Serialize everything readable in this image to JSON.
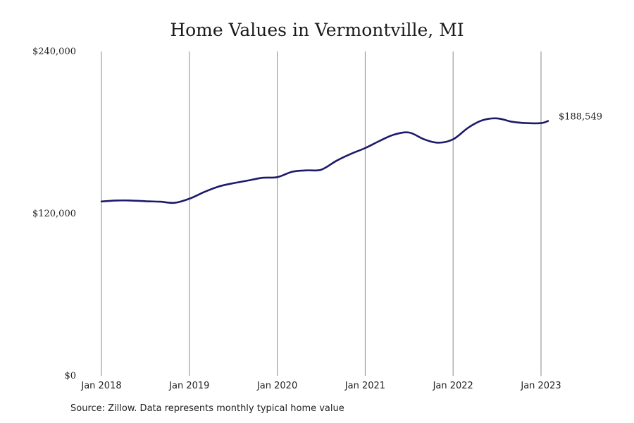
{
  "chart_data": {
    "type": "line",
    "title": "Home Values in Vermontville, MI",
    "xlabel": "",
    "ylabel": "",
    "ylim": [
      0,
      240000
    ],
    "y_ticks": [
      {
        "value": 0,
        "label": "$0"
      },
      {
        "value": 120000,
        "label": "$120,000"
      },
      {
        "value": 240000,
        "label": "$240,000"
      }
    ],
    "x_ticks": [
      {
        "value": 2018,
        "label": "Jan 2018"
      },
      {
        "value": 2019,
        "label": "Jan 2019"
      },
      {
        "value": 2020,
        "label": "Jan 2020"
      },
      {
        "value": 2021,
        "label": "Jan 2021"
      },
      {
        "value": 2022,
        "label": "Jan 2022"
      },
      {
        "value": 2023,
        "label": "Jan 2023"
      }
    ],
    "xlim": [
      2018,
      2023.17
    ],
    "grid": "vertical",
    "line_color": "#1c1a6b",
    "series": [
      {
        "points": [
          [
            2018.0,
            129000
          ],
          [
            2018.17,
            129700
          ],
          [
            2018.33,
            129700
          ],
          [
            2018.5,
            129200
          ],
          [
            2018.67,
            128800
          ],
          [
            2018.83,
            128000
          ],
          [
            2019.0,
            131000
          ],
          [
            2019.17,
            136000
          ],
          [
            2019.33,
            140000
          ],
          [
            2019.5,
            142500
          ],
          [
            2019.67,
            144500
          ],
          [
            2019.83,
            146500
          ],
          [
            2020.0,
            147000
          ],
          [
            2020.17,
            151000
          ],
          [
            2020.33,
            152000
          ],
          [
            2020.5,
            152500
          ],
          [
            2020.67,
            159000
          ],
          [
            2020.83,
            164000
          ],
          [
            2021.0,
            168500
          ],
          [
            2021.17,
            174000
          ],
          [
            2021.33,
            178500
          ],
          [
            2021.5,
            180000
          ],
          [
            2021.67,
            175000
          ],
          [
            2021.83,
            172500
          ],
          [
            2022.0,
            175000
          ],
          [
            2022.17,
            183500
          ],
          [
            2022.33,
            189000
          ],
          [
            2022.5,
            190500
          ],
          [
            2022.67,
            188000
          ],
          [
            2022.83,
            187000
          ],
          [
            2023.0,
            187000
          ],
          [
            2023.08,
            188549
          ]
        ],
        "end_label": "$188,549"
      }
    ],
    "note": "Source: Zillow. Data represents monthly typical home value"
  }
}
